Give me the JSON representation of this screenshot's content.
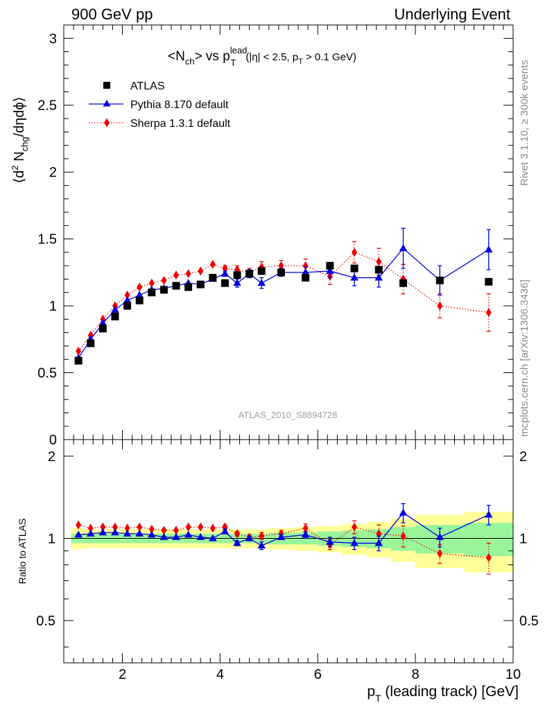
{
  "header": {
    "left": "900 GeV pp",
    "right": "Underlying Event"
  },
  "side_labels": {
    "rivet": "Rivet 3.1.10, ≥ 300k events",
    "mcplots": "mcplots.cern.ch [arXiv:1306.3436]"
  },
  "colors": {
    "atlas": "#000000",
    "pythia": "#0000dd",
    "sherpa": "#ee0000",
    "band_inner": "#99f599",
    "band_outer": "#ffff99"
  },
  "chart_data": [
    {
      "type": "scatter",
      "panel": "main",
      "title": {
        "main": "<N",
        "sub1": "ch",
        "vs": "> vs p",
        "sup": "lead",
        "subT": "T",
        "cuts_a": "(|η| < 2.5, p",
        "cuts_sub": "T",
        "cuts_b": " > 0.1 GeV)"
      },
      "ylabel": {
        "open": "⟨d",
        "sup2": "2",
        "n": " N",
        "sub": "chg",
        "rest": "/dηdϕ⟩"
      },
      "watermark": "ATLAS_2010_S8894728",
      "xlim": [
        0.8,
        10.0
      ],
      "ylim": [
        0,
        3.1
      ],
      "yticks": [
        {
          "v": 0,
          "label": "0"
        },
        {
          "v": 0.5,
          "label": "0.5"
        },
        {
          "v": 1,
          "label": "1"
        },
        {
          "v": 1.5,
          "label": "1.5"
        },
        {
          "v": 2,
          "label": "2"
        },
        {
          "v": 2.5,
          "label": "2.5"
        },
        {
          "v": 3,
          "label": "3"
        }
      ],
      "legend_position": "top-left",
      "series": [
        {
          "name": "ATLAS",
          "marker": "square",
          "x": [
            1.1,
            1.35,
            1.6,
            1.85,
            2.1,
            2.35,
            2.6,
            2.85,
            3.1,
            3.35,
            3.6,
            3.85,
            4.1,
            4.35,
            4.6,
            4.85,
            5.25,
            5.75,
            6.25,
            6.75,
            7.25,
            7.75,
            8.5,
            9.5
          ],
          "y": [
            0.59,
            0.72,
            0.83,
            0.92,
            1.0,
            1.04,
            1.1,
            1.12,
            1.15,
            1.14,
            1.16,
            1.21,
            1.17,
            1.23,
            1.24,
            1.26,
            1.25,
            1.21,
            1.3,
            1.28,
            1.27,
            1.17,
            1.19,
            1.18
          ]
        },
        {
          "name": "Pythia 8.170 default",
          "marker": "triangle",
          "line": "solid",
          "x": [
            1.1,
            1.35,
            1.6,
            1.85,
            2.1,
            2.35,
            2.6,
            2.85,
            3.1,
            3.35,
            3.6,
            3.85,
            4.1,
            4.35,
            4.6,
            4.85,
            5.25,
            5.75,
            6.25,
            6.75,
            7.25,
            7.75,
            8.5,
            9.5
          ],
          "y": [
            0.61,
            0.75,
            0.87,
            0.97,
            1.04,
            1.08,
            1.12,
            1.13,
            1.15,
            1.17,
            1.16,
            1.2,
            1.24,
            1.17,
            1.24,
            1.17,
            1.25,
            1.25,
            1.26,
            1.21,
            1.21,
            1.43,
            1.19,
            1.42
          ],
          "err": [
            0.01,
            0.01,
            0.01,
            0.01,
            0.01,
            0.01,
            0.01,
            0.01,
            0.01,
            0.01,
            0.01,
            0.01,
            0.02,
            0.03,
            0.03,
            0.04,
            0.03,
            0.04,
            0.05,
            0.06,
            0.07,
            0.15,
            0.11,
            0.15
          ]
        },
        {
          "name": "Sherpa 1.3.1 default",
          "marker": "diamond",
          "line": "dotted",
          "x": [
            1.1,
            1.35,
            1.6,
            1.85,
            2.1,
            2.35,
            2.6,
            2.85,
            3.1,
            3.35,
            3.6,
            3.85,
            4.1,
            4.35,
            4.6,
            4.85,
            5.25,
            5.75,
            6.25,
            6.75,
            7.25,
            7.75,
            8.5,
            9.5
          ],
          "y": [
            0.66,
            0.78,
            0.9,
            1.0,
            1.08,
            1.14,
            1.17,
            1.19,
            1.23,
            1.24,
            1.26,
            1.31,
            1.28,
            1.27,
            1.25,
            1.29,
            1.3,
            1.3,
            1.22,
            1.4,
            1.33,
            1.2,
            1.0,
            0.95
          ],
          "err": [
            0.01,
            0.01,
            0.01,
            0.01,
            0.01,
            0.01,
            0.01,
            0.01,
            0.01,
            0.01,
            0.01,
            0.01,
            0.02,
            0.03,
            0.03,
            0.04,
            0.04,
            0.05,
            0.06,
            0.08,
            0.1,
            0.11,
            0.09,
            0.14
          ]
        }
      ]
    },
    {
      "type": "scatter",
      "panel": "ratio",
      "xlabel": {
        "p": "p",
        "sub": "T",
        "rest": " (leading track) [GeV]"
      },
      "ylabel": "Ratio to ATLAS",
      "xlim": [
        0.8,
        10.0
      ],
      "ylim": [
        0.35,
        2.3
      ],
      "xticks": [
        {
          "v": 2,
          "label": "2"
        },
        {
          "v": 4,
          "label": "4"
        },
        {
          "v": 6,
          "label": "6"
        },
        {
          "v": 8,
          "label": "8"
        },
        {
          "v": 10,
          "label": "10"
        }
      ],
      "yticks": [
        {
          "v": 0.5,
          "label": "0.5"
        },
        {
          "v": 1,
          "label": "1"
        },
        {
          "v": 2,
          "label": "2"
        }
      ],
      "reference_line": 1,
      "bands": {
        "edges": [
          0.95,
          1.225,
          1.475,
          1.725,
          1.975,
          2.225,
          2.475,
          2.725,
          2.975,
          3.225,
          3.475,
          3.725,
          3.975,
          4.225,
          4.475,
          4.725,
          5.0,
          5.5,
          6.0,
          6.5,
          7.0,
          7.5,
          8.0,
          9.0,
          10.0
        ],
        "inner": [
          0.04,
          0.04,
          0.04,
          0.04,
          0.04,
          0.04,
          0.04,
          0.04,
          0.04,
          0.04,
          0.04,
          0.04,
          0.04,
          0.04,
          0.04,
          0.04,
          0.05,
          0.05,
          0.06,
          0.07,
          0.08,
          0.1,
          0.12,
          0.14
        ],
        "outer": [
          0.09,
          0.08,
          0.08,
          0.08,
          0.08,
          0.08,
          0.08,
          0.08,
          0.08,
          0.08,
          0.08,
          0.08,
          0.08,
          0.08,
          0.08,
          0.08,
          0.09,
          0.1,
          0.11,
          0.13,
          0.15,
          0.18,
          0.22,
          0.25
        ]
      },
      "series": [
        {
          "name": "Pythia 8.170 default",
          "marker": "triangle",
          "line": "solid",
          "x": [
            1.1,
            1.35,
            1.6,
            1.85,
            2.1,
            2.35,
            2.6,
            2.85,
            3.1,
            3.35,
            3.6,
            3.85,
            4.1,
            4.35,
            4.6,
            4.85,
            5.25,
            5.75,
            6.25,
            6.75,
            7.25,
            7.75,
            8.5,
            9.5
          ],
          "y": [
            1.03,
            1.04,
            1.05,
            1.05,
            1.04,
            1.04,
            1.03,
            1.01,
            1.01,
            1.03,
            1.01,
            1.0,
            1.06,
            0.96,
            1.0,
            0.94,
            1.01,
            1.03,
            0.97,
            0.96,
            0.96,
            1.24,
            1.01,
            1.22
          ],
          "err": [
            0.01,
            0.01,
            0.01,
            0.01,
            0.01,
            0.01,
            0.01,
            0.01,
            0.01,
            0.01,
            0.01,
            0.01,
            0.02,
            0.02,
            0.02,
            0.03,
            0.02,
            0.03,
            0.04,
            0.05,
            0.06,
            0.1,
            0.08,
            0.1
          ]
        },
        {
          "name": "Sherpa 1.3.1 default",
          "marker": "diamond",
          "line": "dotted",
          "x": [
            1.1,
            1.35,
            1.6,
            1.85,
            2.1,
            2.35,
            2.6,
            2.85,
            3.1,
            3.35,
            3.6,
            3.85,
            4.1,
            4.35,
            4.6,
            4.85,
            5.25,
            5.75,
            6.25,
            6.75,
            7.25,
            7.75,
            8.5,
            9.5
          ],
          "y": [
            1.12,
            1.09,
            1.1,
            1.1,
            1.09,
            1.1,
            1.08,
            1.07,
            1.07,
            1.1,
            1.1,
            1.09,
            1.1,
            1.04,
            1.01,
            1.02,
            1.04,
            1.09,
            0.95,
            1.1,
            1.04,
            1.02,
            0.88,
            0.85
          ],
          "err": [
            0.01,
            0.01,
            0.01,
            0.01,
            0.01,
            0.01,
            0.01,
            0.01,
            0.01,
            0.01,
            0.01,
            0.01,
            0.02,
            0.02,
            0.02,
            0.03,
            0.03,
            0.04,
            0.04,
            0.06,
            0.08,
            0.09,
            0.07,
            0.11
          ]
        }
      ]
    }
  ]
}
